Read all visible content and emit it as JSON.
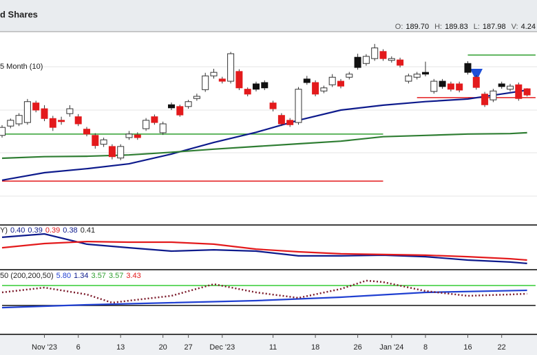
{
  "chart_data": [
    {
      "type": "candlestick",
      "title": "d Shares",
      "annotation": "5 Month (10)",
      "readout": [
        {
          "name": "O:",
          "value": 189.7,
          "label": "189.70"
        },
        {
          "name": "H:",
          "value": 189.83,
          "label": "189.83"
        },
        {
          "name": "L:",
          "value": 187.98,
          "label": "187.98"
        },
        {
          "name": "V:",
          "value": 4.24,
          "label": "4.24"
        }
      ],
      "categories": [
        null,
        null,
        null,
        null,
        null,
        "Nov '23",
        null,
        null,
        null,
        "6",
        null,
        null,
        null,
        null,
        "13",
        null,
        null,
        null,
        null,
        "20",
        null,
        null,
        "27",
        null,
        null,
        null,
        "Dec '23",
        null,
        null,
        null,
        null,
        null,
        "11",
        null,
        null,
        null,
        null,
        "18",
        null,
        null,
        null,
        null,
        "26",
        null,
        null,
        null,
        "Jan '24",
        null,
        null,
        null,
        "8",
        null,
        null,
        null,
        null,
        "16",
        null,
        null,
        null,
        "22",
        null,
        null,
        null
      ],
      "open": [
        179.2,
        181.3,
        181.8,
        182.1,
        186.5,
        185.2,
        183.0,
        182.6,
        184.1,
        183.4,
        180.6,
        179.2,
        177.2,
        176.7,
        174.1,
        178.7,
        179.3,
        180.7,
        183.4,
        179.8,
        186.1,
        185.7,
        185.7,
        187.5,
        189.5,
        192.6,
        191.9,
        191.4,
        193.6,
        189.6,
        190.8,
        191.1,
        186.5,
        183.7,
        182.6,
        182.1,
        191.9,
        191.1,
        189.2,
        190.6,
        191.4,
        192.3,
        196.8,
        195.4,
        196.5,
        198.1,
        196.1,
        196.2,
        191.4,
        192.3,
        193.4,
        189.1,
        191.4,
        190.8,
        190.8,
        195.4,
        192.3,
        188.5,
        187.2,
        190.8,
        189.6,
        190.6,
        189.7
      ],
      "high": [
        181.5,
        183.0,
        184.2,
        187.4,
        187.0,
        186.0,
        183.6,
        183.4,
        186.0,
        184.0,
        181.1,
        179.7,
        178.7,
        177.2,
        177.2,
        180.2,
        179.9,
        183.1,
        183.9,
        182.3,
        186.6,
        186.1,
        187.2,
        188.6,
        193.3,
        194.2,
        192.4,
        198.0,
        194.1,
        190.0,
        191.3,
        191.6,
        187.0,
        184.2,
        183.1,
        190.1,
        192.6,
        191.6,
        190.4,
        193.0,
        191.9,
        193.5,
        197.6,
        197.5,
        199.8,
        198.6,
        197.0,
        196.7,
        193.1,
        193.5,
        195.8,
        191.9,
        191.9,
        191.3,
        191.3,
        195.9,
        192.8,
        189.0,
        189.7,
        191.3,
        190.8,
        191.1,
        189.83
      ],
      "low": [
        178.7,
        180.8,
        181.3,
        181.6,
        184.4,
        182.4,
        180.2,
        181.6,
        183.4,
        181.3,
        179.0,
        176.2,
        176.6,
        173.8,
        173.6,
        178.2,
        178.2,
        180.2,
        181.6,
        179.3,
        184.9,
        183.4,
        185.2,
        187.0,
        189.0,
        192.0,
        190.9,
        190.9,
        189.4,
        188.0,
        189.1,
        189.4,
        184.6,
        181.3,
        181.1,
        181.6,
        190.6,
        188.0,
        188.7,
        190.1,
        189.8,
        191.8,
        194.0,
        194.9,
        196.0,
        196.0,
        195.6,
        194.5,
        190.9,
        191.8,
        192.5,
        188.6,
        189.7,
        189.1,
        188.9,
        192.9,
        189.5,
        185.6,
        186.7,
        189.7,
        189.1,
        187.0,
        187.98
      ],
      "close": [
        181.0,
        182.6,
        183.7,
        186.8,
        184.9,
        183.0,
        181.0,
        182.3,
        185.2,
        181.8,
        179.5,
        176.9,
        178.2,
        174.4,
        176.7,
        179.5,
        178.7,
        182.6,
        182.1,
        181.8,
        185.4,
        183.8,
        186.8,
        188.0,
        192.6,
        193.4,
        191.4,
        197.6,
        189.9,
        188.5,
        189.6,
        189.9,
        185.2,
        181.8,
        181.6,
        189.6,
        191.1,
        188.5,
        189.9,
        192.3,
        190.3,
        193.0,
        194.5,
        197.0,
        198.9,
        196.5,
        196.5,
        195.0,
        192.6,
        193.0,
        193.0,
        191.4,
        190.2,
        189.6,
        189.4,
        193.4,
        190.0,
        186.1,
        189.2,
        190.2,
        190.3,
        187.5,
        188.3
      ],
      "colors": [
        "#ffffff",
        "#ffffff",
        "#ffffff",
        "#ffffff",
        "#e31a1c",
        "#e31a1c",
        "#e31a1c",
        "#e31a1c",
        "#ffffff",
        "#e31a1c",
        "#e31a1c",
        "#e31a1c",
        "#ffffff",
        "#e31a1c",
        "#ffffff",
        "#ffffff",
        "#e31a1c",
        "#ffffff",
        "#e31a1c",
        "#ffffff",
        "#111111",
        "#e31a1c",
        "#ffffff",
        "#ffffff",
        "#ffffff",
        "#ffffff",
        "#e31a1c",
        "#ffffff",
        "#e31a1c",
        "#e31a1c",
        "#111111",
        "#111111",
        "#e31a1c",
        "#e31a1c",
        "#e31a1c",
        "#ffffff",
        "#111111",
        "#e31a1c",
        "#ffffff",
        "#ffffff",
        "#e31a1c",
        "#ffffff",
        "#111111",
        "#ffffff",
        "#ffffff",
        "#e31a1c",
        "#ffffff",
        "#e31a1c",
        "#ffffff",
        "#ffffff",
        "#111111",
        "#ffffff",
        "#111111",
        "#e31a1c",
        "#e31a1c",
        "#111111",
        "#e31a1c",
        "#e31a1c",
        "#ffffff",
        "#111111",
        "#ffffff",
        "#e31a1c",
        "#e31a1c"
      ],
      "series": [
        {
          "color": "#0d1a8c",
          "x": [
            0,
            5,
            10,
            15,
            20,
            25,
            30,
            35,
            40,
            45,
            50,
            55,
            60,
            62
          ],
          "values": [
            169.1,
            170.8,
            171.7,
            172.8,
            175.0,
            177.6,
            179.9,
            182.6,
            184.9,
            186.0,
            186.8,
            187.4,
            188.8,
            189.4
          ]
        },
        {
          "color": "#2e7d32",
          "x": [
            0,
            5,
            10,
            15,
            20,
            25,
            30,
            35,
            40,
            45,
            50,
            55,
            60,
            62
          ],
          "values": [
            174.05,
            174.4,
            174.5,
            174.8,
            175.4,
            176.1,
            176.7,
            177.3,
            177.9,
            178.9,
            179.2,
            179.5,
            179.6,
            179.8
          ]
        }
      ],
      "levels": [
        {
          "value": 179.5,
          "color": "#2e9e2e",
          "from": 0,
          "to": 45
        },
        {
          "value": 168.9,
          "color": "#e31a1c",
          "from": 0,
          "to": 45
        },
        {
          "value": 197.3,
          "color": "#2e9e2e",
          "from": 55,
          "to": 63
        },
        {
          "value": 187.7,
          "color": "#e31a1c",
          "from": 49,
          "to": 63
        }
      ],
      "ylim": [
        160.1,
        202.725
      ]
    },
    {
      "type": "line",
      "title": "Y)",
      "readout": [
        {
          "value": 0.4,
          "label": "0.40",
          "color": "#0d1a8c"
        },
        {
          "value": 0.39,
          "label": "0.39",
          "color": "#0d1a8c"
        },
        {
          "value": 0.39,
          "label": "0.39",
          "color": "#e31a1c"
        },
        {
          "value": 0.38,
          "label": "0.38",
          "color": "#0d1a8c"
        },
        {
          "value": 0.41,
          "label": "0.41",
          "color": "#222222"
        }
      ],
      "series": [
        {
          "color": "#0d1a8c",
          "x": [
            0,
            5,
            10,
            15,
            20,
            25,
            30,
            35,
            40,
            45,
            50,
            55,
            60,
            62
          ],
          "values": [
            0.495,
            0.51,
            0.464,
            0.448,
            0.433,
            0.439,
            0.433,
            0.412,
            0.412,
            0.415,
            0.408,
            0.393,
            0.384,
            0.378
          ]
        },
        {
          "color": "#e31a1c",
          "x": [
            0,
            5,
            10,
            15,
            20,
            25,
            30,
            35,
            40,
            45,
            50,
            55,
            60,
            62
          ],
          "values": [
            0.448,
            0.467,
            0.476,
            0.473,
            0.473,
            0.464,
            0.442,
            0.43,
            0.421,
            0.418,
            0.415,
            0.408,
            0.399,
            0.393
          ]
        }
      ],
      "ylim": [
        0.35,
        0.55
      ]
    },
    {
      "type": "line",
      "title": "50 (200,200,50)",
      "readout": [
        {
          "value": 5.8,
          "label": "5.80",
          "color": "#1f3fd1"
        },
        {
          "value": 1.34,
          "label": "1.34",
          "color": "#0d1a8c"
        },
        {
          "value": 3.57,
          "label": "3.57",
          "color": "#2e9e2e"
        },
        {
          "value": 3.57,
          "label": "3.57",
          "color": "#2e9e2e"
        },
        {
          "value": 3.43,
          "label": "3.43",
          "color": "#e31a1c"
        }
      ],
      "series": [
        {
          "color": "#1f3fd1",
          "x": [
            0,
            10,
            20,
            30,
            40,
            50,
            62
          ],
          "values": [
            3.3,
            3.65,
            3.91,
            4.17,
            4.61,
            5.22,
            5.48
          ]
        },
        {
          "color": "#7b1a2a",
          "dashed": true,
          "x": [
            0,
            5,
            10,
            13,
            15,
            20,
            25,
            30,
            35,
            40,
            43,
            45,
            50,
            55,
            60,
            62
          ],
          "values": [
            5.22,
            5.83,
            4.96,
            3.91,
            4.17,
            4.78,
            6.26,
            5.22,
            4.52,
            5.65,
            6.7,
            6.52,
            5.39,
            4.78,
            4.96,
            5.04
          ]
        }
      ],
      "levels": [
        {
          "value": 6.09,
          "color": "#33cc33",
          "from": 0,
          "to": 63
        },
        {
          "value": 3.57,
          "color": "#111111",
          "from": 0,
          "to": 63
        }
      ],
      "ylim": [
        0,
        8
      ]
    }
  ]
}
